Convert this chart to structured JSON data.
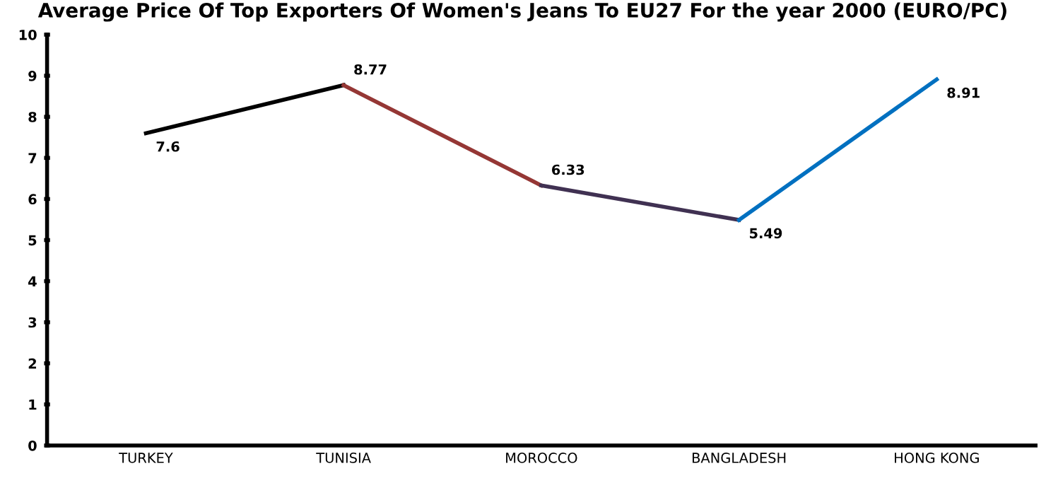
{
  "chart_data": {
    "type": "line",
    "title": "Average Price Of Top Exporters Of Women's Jeans To EU27 For the year 2000 (EURO/PC)",
    "categories": [
      "TURKEY",
      "TUNISIA",
      "MOROCCO",
      "BANGLADESH",
      "HONG KONG"
    ],
    "series": [
      {
        "color": "#000000",
        "values": [
          7.6,
          8.77,
          null,
          null,
          null
        ],
        "value_labels": [
          "7.6",
          "8.77",
          null,
          null,
          null
        ]
      },
      {
        "color": "#953735",
        "values": [
          null,
          8.77,
          6.33,
          null,
          null
        ],
        "value_labels": [
          null,
          null,
          "6.33",
          null,
          null
        ]
      },
      {
        "color": "#403152",
        "values": [
          null,
          null,
          6.33,
          5.49,
          null
        ],
        "value_labels": [
          null,
          null,
          null,
          "5.49",
          null
        ]
      },
      {
        "color": "#0070c0",
        "values": [
          null,
          null,
          null,
          5.49,
          8.91
        ],
        "value_labels": [
          null,
          null,
          null,
          null,
          "8.91"
        ]
      }
    ],
    "ylim": [
      0,
      10
    ],
    "yticks": [
      0,
      1,
      2,
      3,
      4,
      5,
      6,
      7,
      8,
      9,
      10
    ],
    "grid": false,
    "legend": false,
    "marker": "none",
    "line_style": "solid"
  }
}
